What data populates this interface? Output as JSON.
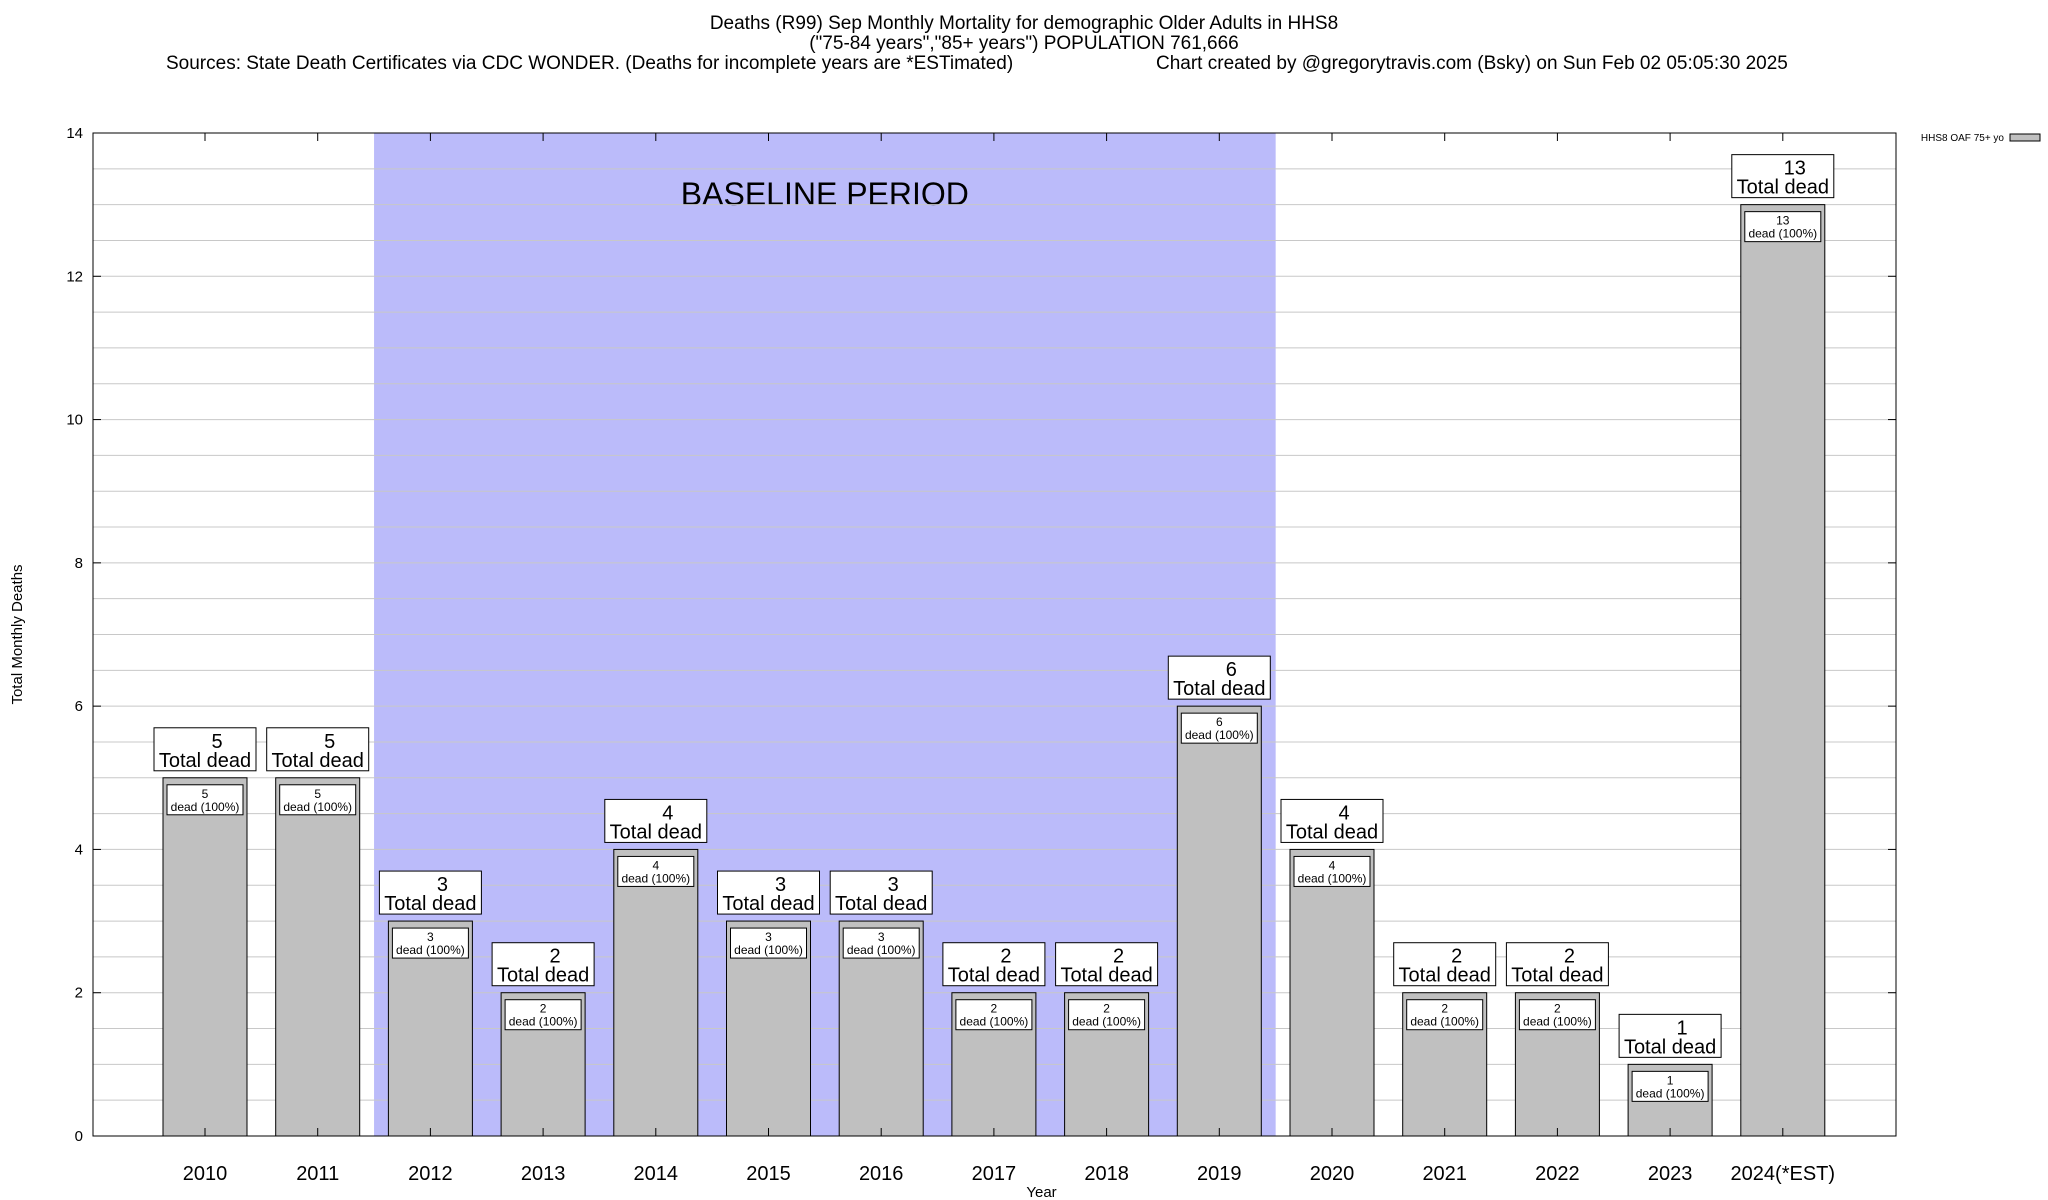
{
  "chart_data": {
    "type": "bar",
    "title": "Deaths (R99) Sep Monthly Mortality for demographic Older Adults in HHS8",
    "subtitle": "(\"75-84 years\",\"85+ years\") POPULATION 761,666",
    "sources": "Sources: State Death Certificates via CDC WONDER. (Deaths for incomplete years are *ESTimated)",
    "credit": "Chart created by @gregorytravis.com (Bsky) on Sun Feb 02 05:05:30 2025",
    "xlabel": "Year",
    "ylabel": "Total Monthly Deaths",
    "ylim": [
      0,
      14
    ],
    "yticks": [
      0,
      2,
      4,
      6,
      8,
      10,
      12,
      14
    ],
    "grid": true,
    "legend_position": "top-right",
    "categories": [
      "2010",
      "2011",
      "2012",
      "2013",
      "2014",
      "2015",
      "2016",
      "2017",
      "2018",
      "2019",
      "2020",
      "2021",
      "2022",
      "2023",
      "2024(*EST)"
    ],
    "series": [
      {
        "name": "HHS8 OAF 75+ yo",
        "values": [
          5,
          5,
          3,
          2,
          4,
          3,
          3,
          2,
          2,
          6,
          4,
          2,
          2,
          1,
          13
        ]
      }
    ],
    "annotation": {
      "text": "BASELINE PERIOD",
      "from": "2012",
      "to": "2019"
    },
    "total_label": "Total dead",
    "inner_label": "dead (100%)",
    "colors": {
      "bar": "#c0c0c0",
      "baseline": "#bbbbfa",
      "grid": "#c8c8c8"
    }
  }
}
